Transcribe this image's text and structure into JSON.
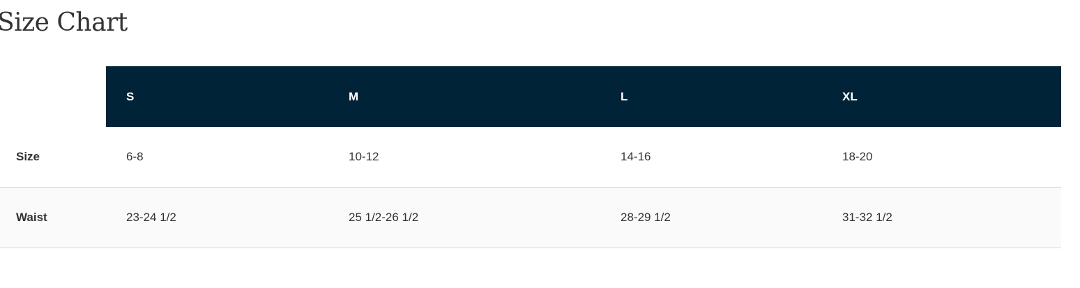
{
  "title": "Size Chart",
  "headers": [
    "S",
    "M",
    "L",
    "XL"
  ],
  "rows": [
    {
      "label": "Size",
      "values": [
        "6-8",
        "10-12",
        "14-16",
        "18-20"
      ]
    },
    {
      "label": "Waist",
      "values": [
        "23-24 1/2",
        "25 1/2-26 1/2",
        "28-29 1/2",
        "31-32 1/2"
      ]
    }
  ],
  "colors": {
    "header_bg": "#002337"
  }
}
